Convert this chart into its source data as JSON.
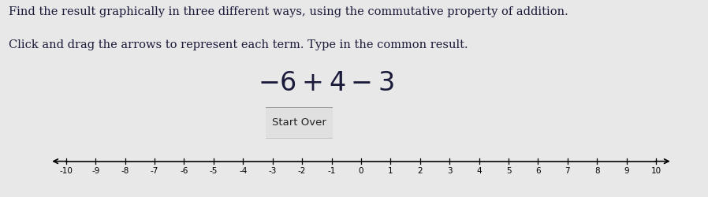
{
  "background_color": "#e8e8e8",
  "instruction_line1": "Find the result graphically in three different ways, using the commutative property of addition.",
  "instruction_line2": "Click and drag the arrows to represent each term. Type in the common result.",
  "button_label": "Start Over",
  "number_line_min": -10,
  "number_line_max": 10,
  "text_color": "#1a1a3a",
  "instruction_fontsize": 10.5,
  "expression_fontsize": 24,
  "button_fontsize": 9.5,
  "nl_label_fontsize": 7.5
}
